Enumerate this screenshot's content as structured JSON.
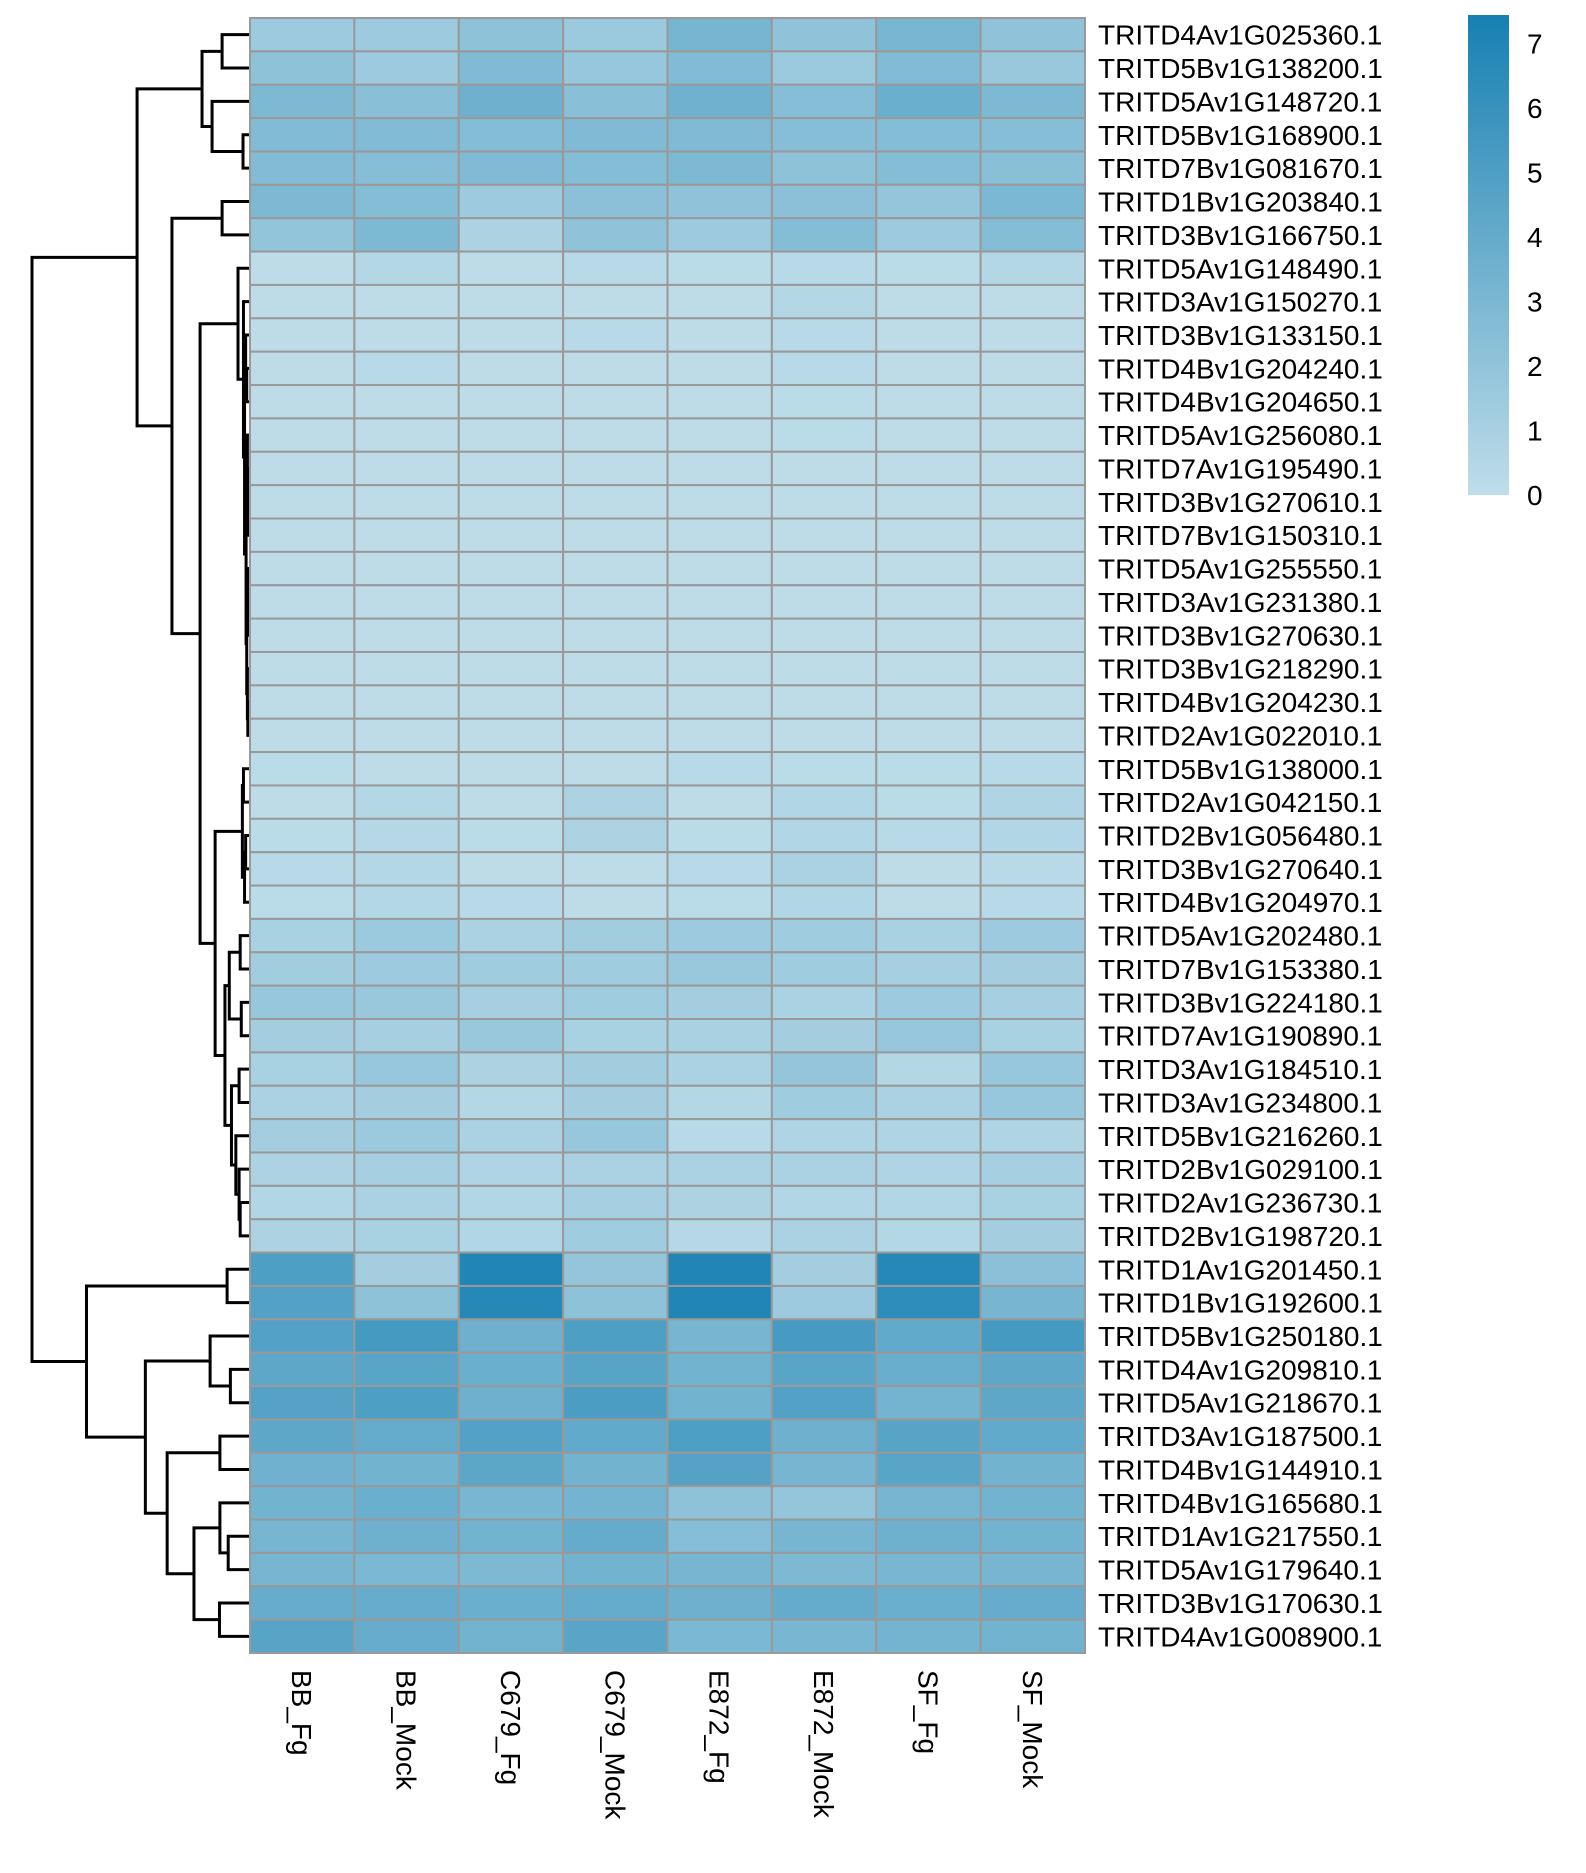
{
  "chart_data": {
    "type": "heatmap",
    "title": "",
    "columns": [
      "BB_Fg",
      "BB_Mock",
      "C679_Fg",
      "C679_Mock",
      "E872_Fg",
      "E872_Mock",
      "SF_Fg",
      "SF_Mock"
    ],
    "rows": [
      "TRITD4Av1G025360.1",
      "TRITD5Bv1G138200.1",
      "TRITD5Av1G148720.1",
      "TRITD5Bv1G168900.1",
      "TRITD7Bv1G081670.1",
      "TRITD1Bv1G203840.1",
      "TRITD3Bv1G166750.1",
      "TRITD5Av1G148490.1",
      "TRITD3Av1G150270.1",
      "TRITD3Bv1G133150.1",
      "TRITD4Bv1G204240.1",
      "TRITD4Bv1G204650.1",
      "TRITD5Av1G256080.1",
      "TRITD7Av1G195490.1",
      "TRITD3Bv1G270610.1",
      "TRITD7Bv1G150310.1",
      "TRITD5Av1G255550.1",
      "TRITD3Av1G231380.1",
      "TRITD3Bv1G270630.1",
      "TRITD3Bv1G218290.1",
      "TRITD4Bv1G204230.1",
      "TRITD2Av1G022010.1",
      "TRITD5Bv1G138000.1",
      "TRITD2Av1G042150.1",
      "TRITD2Bv1G056480.1",
      "TRITD3Bv1G270640.1",
      "TRITD4Bv1G204970.1",
      "TRITD5Av1G202480.1",
      "TRITD7Bv1G153380.1",
      "TRITD3Bv1G224180.1",
      "TRITD7Av1G190890.1",
      "TRITD3Av1G184510.1",
      "TRITD3Av1G234800.1",
      "TRITD5Bv1G216260.1",
      "TRITD2Bv1G029100.1",
      "TRITD2Av1G236730.1",
      "TRITD2Bv1G198720.1",
      "TRITD1Av1G201450.1",
      "TRITD1Bv1G192600.1",
      "TRITD5Bv1G250180.1",
      "TRITD4Av1G209810.1",
      "TRITD5Av1G218670.1",
      "TRITD3Av1G187500.1",
      "TRITD4Bv1G144910.1",
      "TRITD4Bv1G165680.1",
      "TRITD1Av1G217550.1",
      "TRITD5Av1G179640.1",
      "TRITD3Bv1G170630.1",
      "TRITD4Av1G008900.1"
    ],
    "values": [
      [
        1.5,
        1.5,
        2.2,
        1.6,
        3.2,
        2.1,
        3.1,
        2.1
      ],
      [
        2.2,
        1.5,
        2.8,
        1.8,
        2.7,
        1.6,
        2.7,
        1.7
      ],
      [
        2.9,
        2.4,
        3.6,
        2.4,
        3.5,
        2.5,
        3.7,
        2.9
      ],
      [
        2.7,
        2.7,
        2.6,
        2.8,
        2.8,
        2.5,
        2.6,
        2.5
      ],
      [
        2.7,
        2.5,
        2.8,
        2.6,
        2.9,
        2.2,
        2.6,
        2.4
      ],
      [
        2.9,
        2.6,
        1.5,
        2.3,
        2.1,
        2.3,
        1.9,
        3.0
      ],
      [
        2.0,
        2.9,
        0.8,
        2.1,
        1.5,
        2.6,
        1.5,
        2.6
      ],
      [
        0.1,
        0.5,
        0.1,
        0.3,
        0.2,
        0.3,
        0.2,
        0.5
      ],
      [
        0.1,
        0.1,
        0.1,
        0.1,
        0.1,
        0.5,
        0.1,
        0.1
      ],
      [
        0.1,
        0.1,
        0.1,
        0.3,
        0.1,
        0.3,
        0.1,
        0.1
      ],
      [
        0.1,
        0.3,
        0.1,
        0.1,
        0.1,
        0.3,
        0.1,
        0.1
      ],
      [
        0.1,
        0.1,
        0.1,
        0.1,
        0.1,
        0.2,
        0.1,
        0.1
      ],
      [
        0.1,
        0.1,
        0.1,
        0.1,
        0.1,
        0.2,
        0.1,
        0.1
      ],
      [
        0.1,
        0.1,
        0.1,
        0.1,
        0.1,
        0.1,
        0.1,
        0.1
      ],
      [
        0.1,
        0.1,
        0.1,
        0.1,
        0.1,
        0.1,
        0.1,
        0.1
      ],
      [
        0.1,
        0.1,
        0.1,
        0.1,
        0.1,
        0.1,
        0.1,
        0.1
      ],
      [
        0.1,
        0.1,
        0.1,
        0.1,
        0.1,
        0.1,
        0.1,
        0.1
      ],
      [
        0.1,
        0.1,
        0.1,
        0.1,
        0.1,
        0.1,
        0.1,
        0.1
      ],
      [
        0.1,
        0.1,
        0.1,
        0.1,
        0.1,
        0.1,
        0.1,
        0.1
      ],
      [
        0.1,
        0.1,
        0.1,
        0.1,
        0.1,
        0.1,
        0.1,
        0.1
      ],
      [
        0.1,
        0.1,
        0.1,
        0.1,
        0.1,
        0.1,
        0.1,
        0.1
      ],
      [
        0.1,
        0.1,
        0.1,
        0.1,
        0.1,
        0.1,
        0.1,
        0.1
      ],
      [
        0.2,
        0.1,
        0.1,
        0.1,
        0.3,
        0.2,
        0.2,
        0.3
      ],
      [
        0.1,
        0.5,
        0.1,
        0.8,
        0.1,
        0.6,
        0.2,
        0.7
      ],
      [
        0.2,
        0.4,
        0.2,
        0.8,
        0.2,
        0.6,
        0.3,
        0.6
      ],
      [
        0.3,
        0.5,
        0.1,
        0.1,
        0.3,
        0.9,
        0.1,
        0.3
      ],
      [
        0.2,
        0.5,
        0.3,
        0.1,
        0.2,
        0.6,
        0.1,
        0.3
      ],
      [
        1.0,
        1.6,
        0.9,
        1.3,
        1.5,
        1.4,
        1.0,
        1.5
      ],
      [
        1.3,
        1.5,
        1.4,
        1.4,
        1.7,
        1.4,
        1.1,
        1.2
      ],
      [
        1.8,
        1.7,
        1.1,
        1.4,
        1.2,
        0.9,
        1.5,
        1.1
      ],
      [
        1.2,
        1.1,
        1.7,
        1.0,
        1.0,
        1.2,
        1.8,
        1.0
      ],
      [
        1.0,
        1.8,
        0.8,
        1.3,
        0.9,
        1.9,
        0.5,
        1.8
      ],
      [
        0.9,
        1.2,
        0.5,
        1.2,
        0.5,
        1.4,
        0.9,
        1.8
      ],
      [
        1.2,
        1.6,
        0.9,
        1.8,
        0.3,
        0.7,
        0.7,
        0.7
      ],
      [
        0.8,
        1.1,
        0.7,
        0.9,
        0.9,
        0.9,
        0.7,
        1.1
      ],
      [
        0.6,
        0.9,
        0.6,
        1.1,
        0.8,
        0.6,
        0.6,
        1.0
      ],
      [
        0.8,
        1.0,
        0.6,
        1.4,
        0.4,
        0.9,
        0.5,
        1.2
      ],
      [
        5.0,
        1.2,
        7.0,
        1.9,
        7.0,
        1.2,
        6.8,
        2.3
      ],
      [
        4.8,
        2.2,
        6.8,
        2.2,
        7.0,
        1.5,
        6.4,
        3.2
      ],
      [
        4.8,
        5.4,
        3.6,
        5.0,
        3.2,
        5.3,
        4.1,
        5.4
      ],
      [
        4.3,
        4.5,
        3.7,
        4.6,
        3.4,
        4.5,
        3.8,
        4.3
      ],
      [
        4.7,
        5.0,
        3.6,
        5.1,
        3.4,
        4.8,
        3.3,
        4.3
      ],
      [
        4.3,
        4.0,
        4.8,
        4.1,
        5.0,
        3.6,
        4.6,
        4.1
      ],
      [
        3.5,
        3.4,
        4.4,
        3.4,
        4.7,
        3.2,
        4.5,
        3.4
      ],
      [
        3.4,
        3.7,
        3.1,
        3.3,
        2.2,
        1.9,
        3.2,
        3.4
      ],
      [
        3.2,
        3.6,
        3.4,
        4.0,
        2.5,
        3.2,
        3.6,
        3.4
      ],
      [
        3.2,
        3.0,
        2.9,
        3.4,
        3.2,
        2.9,
        3.1,
        3.2
      ],
      [
        3.9,
        3.9,
        3.7,
        4.0,
        3.6,
        4.0,
        3.7,
        3.9
      ],
      [
        4.6,
        3.9,
        3.4,
        4.5,
        3.0,
        3.1,
        3.3,
        3.4
      ]
    ],
    "color_scale": {
      "min": 0,
      "max": 7.44,
      "low_color": "#bfdde9",
      "high_color": "#1780b2"
    },
    "legend": {
      "ticks": [
        "0",
        "1",
        "2",
        "3",
        "4",
        "5",
        "6",
        "7"
      ],
      "placement": "top-right"
    },
    "cell_border_color": "#999999",
    "row_dendrogram": {
      "side": "left",
      "max_height": 10,
      "tree": [
        10,
        [
          5.18,
          [
            2.2,
            [
              1.28,
              0,
              1
            ],
            [
              1.74,
              2,
              [
                0.32,
                3,
                4
              ]
            ]
          ],
          [
            3.58,
            [
              1.28,
              5,
              6
            ],
            [
              2.29,
              [
                0.55,
                7,
                [
                  0.3,
                  8,
                  [
                    0.25,
                    [
                      0.2,
                      9,
                      [
                        0.15,
                        10,
                        11
                      ]
                    ],
                    [
                      0.18,
                      [
                        0.12,
                        12,
                        [
                          0.1,
                          13,
                          [
                            0.08,
                            14,
                            15
                          ]
                        ]
                      ],
                      [
                        0.15,
                        [
                          0.1,
                          16,
                          [
                            0.08,
                            17,
                            18
                          ]
                        ],
                        [
                          0.12,
                          19,
                          [
                            0.1,
                            20,
                            21
                          ]
                        ]
                      ]
                    ]
                  ]
                ]
              ],
              [
                1.6,
                [
                  0.35,
                  [
                    0.3,
                    22,
                    23
                  ],
                  [
                    0.25,
                    [
                      0.2,
                      24,
                      25
                    ],
                    26
                  ]
                ],
                [
                  1.15,
                  [
                    0.95,
                    [
                      0.45,
                      27,
                      28
                    ],
                    [
                      0.4,
                      29,
                      30
                    ]
                  ],
                  [
                    0.85,
                    [
                      0.5,
                      31,
                      32
                    ],
                    [
                      0.65,
                      33,
                      [
                        0.5,
                        34,
                        [
                          0.45,
                          35,
                          36
                        ]
                      ]
                    ]
                  ]
                ]
              ]
            ]
          ]
        ],
        [
          7.5,
          [
            1.05,
            37,
            38
          ],
          [
            4.8,
            [
              1.83,
              39,
              [
                0.9,
                40,
                41
              ]
            ],
            [
              3.8,
              [
                1.38,
                42,
                43
              ],
              [
                2.57,
                [
                  1.38,
                  44,
                  [
                    1.0,
                    45,
                    46
                  ]
                ],
                [
                  1.4,
                  47,
                  48
                ]
              ]
            ]
          ]
        ]
      ]
    }
  }
}
